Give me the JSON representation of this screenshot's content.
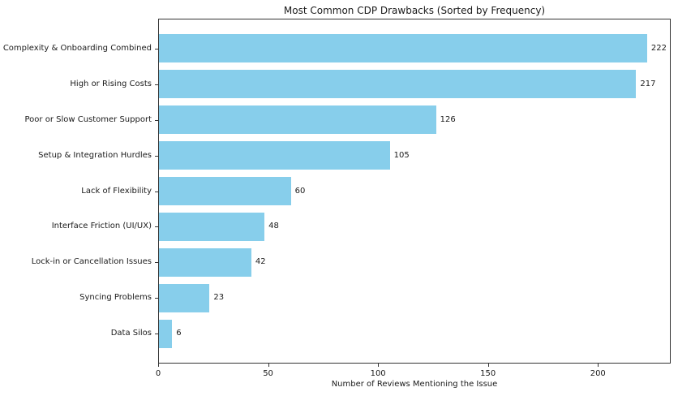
{
  "chart_data": {
    "type": "bar",
    "orientation": "horizontal",
    "title": "Most Common CDP Drawbacks (Sorted by Frequency)",
    "xlabel": "Number of Reviews Mentioning the Issue",
    "ylabel": "",
    "categories": [
      "Complexity & Onboarding Combined",
      "High or Rising Costs",
      "Poor or Slow Customer Support",
      "Setup & Integration Hurdles",
      "Lack of Flexibility",
      "Interface Friction (UI/UX)",
      "Lock-in or Cancellation Issues",
      "Syncing Problems",
      "Data Silos"
    ],
    "values": [
      222,
      217,
      126,
      105,
      60,
      48,
      42,
      23,
      6
    ],
    "value_labels": [
      "222",
      "217",
      "126",
      "105",
      "60",
      "48",
      "42",
      "23",
      "6"
    ],
    "xlim": [
      0,
      233.1
    ],
    "xticks": [
      0,
      50,
      100,
      150,
      200
    ],
    "xtick_labels": [
      "0",
      "50",
      "100",
      "150",
      "200"
    ],
    "bar_color": "#87CEEB",
    "bar_height_fraction": 0.8,
    "grid": false,
    "legend": false,
    "background_color": "#ffffff",
    "text_color": "#1a1a1a",
    "spine_color": "#333333"
  }
}
